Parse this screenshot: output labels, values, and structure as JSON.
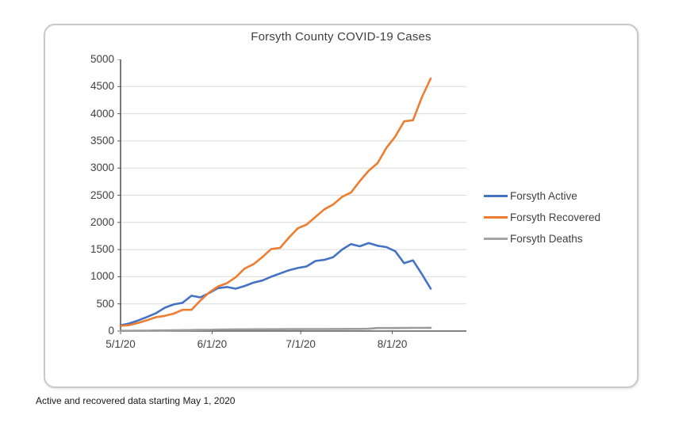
{
  "card_title": "Forsyth County COVID-19 Cases",
  "footnote": "Active and recovered data starting May 1, 2020",
  "colors": {
    "active": "#4472C4",
    "recovered": "#ED7D31",
    "deaths": "#A5A5A5",
    "gridline": "#D9D9D9",
    "axis": "#595959",
    "text": "#404040",
    "card_border": "#C8C8C8"
  },
  "chart_data": {
    "type": "line",
    "title": "Forsyth County COVID-19 Cases",
    "xlabel": "",
    "ylabel": "",
    "ylim": [
      0,
      5000
    ],
    "yticks": [
      0,
      500,
      1000,
      1500,
      2000,
      2500,
      3000,
      3500,
      4000,
      4500,
      5000
    ],
    "xticks": [
      {
        "label": "5/1/20",
        "day": 0
      },
      {
        "label": "6/1/20",
        "day": 31
      },
      {
        "label": "7/1/20",
        "day": 61
      },
      {
        "label": "8/1/20",
        "day": 92
      }
    ],
    "x_total_days": 105,
    "grid": "horizontal",
    "legend_position": "right",
    "x_dates": [
      "5/1/20",
      "5/4/20",
      "5/7/20",
      "5/10/20",
      "5/13/20",
      "5/16/20",
      "5/19/20",
      "5/22/20",
      "5/25/20",
      "5/28/20",
      "5/31/20",
      "6/3/20",
      "6/6/20",
      "6/9/20",
      "6/12/20",
      "6/15/20",
      "6/18/20",
      "6/21/20",
      "6/24/20",
      "6/27/20",
      "6/30/20",
      "7/3/20",
      "7/6/20",
      "7/9/20",
      "7/12/20",
      "7/15/20",
      "7/18/20",
      "7/21/20",
      "7/24/20",
      "7/27/20",
      "7/30/20",
      "8/2/20",
      "8/5/20",
      "8/8/20",
      "8/11/20",
      "8/14/20"
    ],
    "x_days": [
      0,
      3,
      6,
      9,
      12,
      15,
      18,
      21,
      24,
      27,
      30,
      33,
      36,
      39,
      42,
      45,
      48,
      51,
      54,
      57,
      60,
      63,
      66,
      69,
      72,
      75,
      78,
      81,
      84,
      87,
      90,
      93,
      96,
      99,
      102,
      105
    ],
    "series": [
      {
        "name": "Forsyth Active",
        "color": "#4472C4",
        "values": [
          105,
          140,
          195,
          260,
          330,
          430,
          490,
          520,
          650,
          620,
          700,
          790,
          810,
          780,
          830,
          890,
          930,
          1000,
          1060,
          1120,
          1160,
          1190,
          1290,
          1310,
          1360,
          1500,
          1600,
          1560,
          1620,
          1570,
          1545,
          1470,
          1250,
          1300,
          1050,
          780
        ]
      },
      {
        "name": "Forsyth Recovered",
        "color": "#ED7D31",
        "values": [
          95,
          110,
          150,
          200,
          255,
          280,
          320,
          390,
          390,
          560,
          710,
          820,
          880,
          990,
          1150,
          1230,
          1360,
          1510,
          1530,
          1720,
          1890,
          1960,
          2100,
          2240,
          2330,
          2470,
          2550,
          2760,
          2950,
          3090,
          3370,
          3580,
          3860,
          3880,
          4300,
          4650
        ]
      },
      {
        "name": "Forsyth Deaths",
        "color": "#9B9B9B",
        "values": [
          4,
          5,
          6,
          8,
          10,
          12,
          14,
          16,
          18,
          20,
          22,
          26,
          29,
          30,
          31,
          32,
          32,
          33,
          34,
          35,
          35,
          36,
          36,
          37,
          38,
          38,
          40,
          40,
          42,
          55,
          56,
          56,
          57,
          58,
          58,
          60
        ]
      }
    ]
  }
}
